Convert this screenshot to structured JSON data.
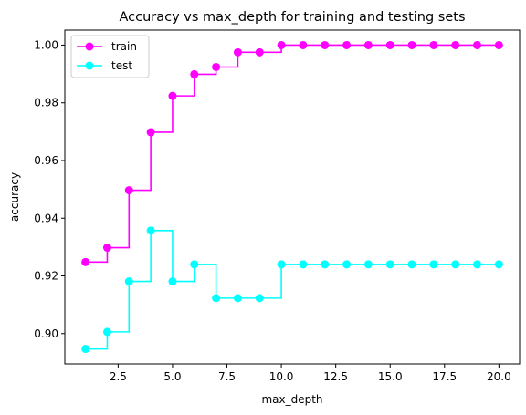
{
  "chart_data": {
    "type": "line",
    "title": "Accuracy vs max_depth for training and testing sets",
    "xlabel": "max_depth",
    "ylabel": "accuracy",
    "xlim": [
      0.05,
      20.95
    ],
    "ylim": [
      0.8895,
      1.0052
    ],
    "xticks": [
      2.5,
      5.0,
      7.5,
      10.0,
      12.5,
      15.0,
      17.5,
      20.0
    ],
    "xtick_labels": [
      "2.5",
      "5.0",
      "7.5",
      "10.0",
      "12.5",
      "15.0",
      "17.5",
      "20.0"
    ],
    "yticks": [
      0.9,
      0.92,
      0.94,
      0.96,
      0.98,
      1.0
    ],
    "ytick_labels": [
      "0.90",
      "0.92",
      "0.94",
      "0.96",
      "0.98",
      "1.00"
    ],
    "grid": false,
    "legend_position": "top-left",
    "drawstyle": "steps-post",
    "x": [
      1,
      2,
      3,
      4,
      5,
      6,
      7,
      8,
      9,
      10,
      11,
      12,
      13,
      14,
      15,
      16,
      17,
      18,
      19,
      20
    ],
    "series": [
      {
        "name": "train",
        "color": "#ff00ff",
        "values": [
          0.9248,
          0.9298,
          0.9497,
          0.9698,
          0.9824,
          0.9899,
          0.9924,
          0.9975,
          0.9975,
          1.0,
          1.0,
          1.0,
          1.0,
          1.0,
          1.0,
          1.0,
          1.0,
          1.0,
          1.0,
          1.0
        ]
      },
      {
        "name": "test",
        "color": "#00ffff",
        "values": [
          0.8947,
          0.9006,
          0.9181,
          0.9357,
          0.9181,
          0.924,
          0.9123,
          0.9123,
          0.9123,
          0.924,
          0.924,
          0.924,
          0.924,
          0.924,
          0.924,
          0.924,
          0.924,
          0.924,
          0.924,
          0.924
        ]
      }
    ]
  }
}
